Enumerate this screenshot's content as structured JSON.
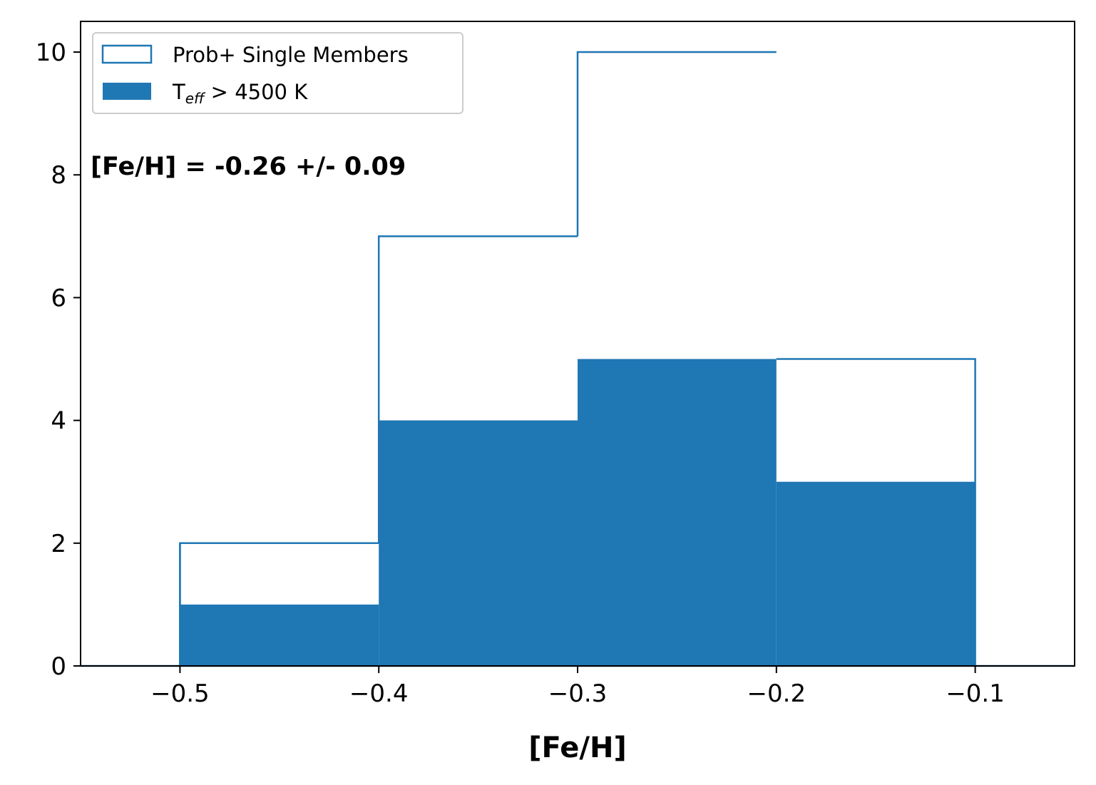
{
  "chart_data": {
    "type": "bar",
    "subtype": "histogram",
    "bin_edges": [
      -0.5,
      -0.4,
      -0.3,
      -0.2,
      -0.1
    ],
    "series": [
      {
        "name": "Prob+ Single Members",
        "style": "step",
        "color": "#1f77b4",
        "values": [
          2,
          7,
          10,
          5
        ]
      },
      {
        "name": "T_eff > 4500 K",
        "style": "filled",
        "color": "#1f77b4",
        "values": [
          1,
          4,
          5,
          3
        ]
      }
    ],
    "xlabel": "[Fe/H]",
    "ylabel": "",
    "xlim": [
      -0.55,
      -0.05
    ],
    "ylim": [
      0,
      10.5
    ],
    "xticks": [
      -0.5,
      -0.4,
      -0.3,
      -0.2,
      -0.1
    ],
    "xtick_labels": [
      "−0.5",
      "−0.4",
      "−0.3",
      "−0.2",
      "−0.1"
    ],
    "yticks": [
      0,
      2,
      4,
      6,
      8,
      10
    ],
    "ytick_labels": [
      "0",
      "2",
      "4",
      "6",
      "8",
      "10"
    ],
    "annotation": "[Fe/H] = -0.26 +/- 0.09",
    "legend": {
      "position": "upper-left",
      "entries": [
        {
          "label": "Prob+ Single Members"
        },
        {
          "label_main": "T",
          "label_sub": "eff",
          "label_rest": " > 4500 K"
        }
      ]
    },
    "grid": false
  }
}
